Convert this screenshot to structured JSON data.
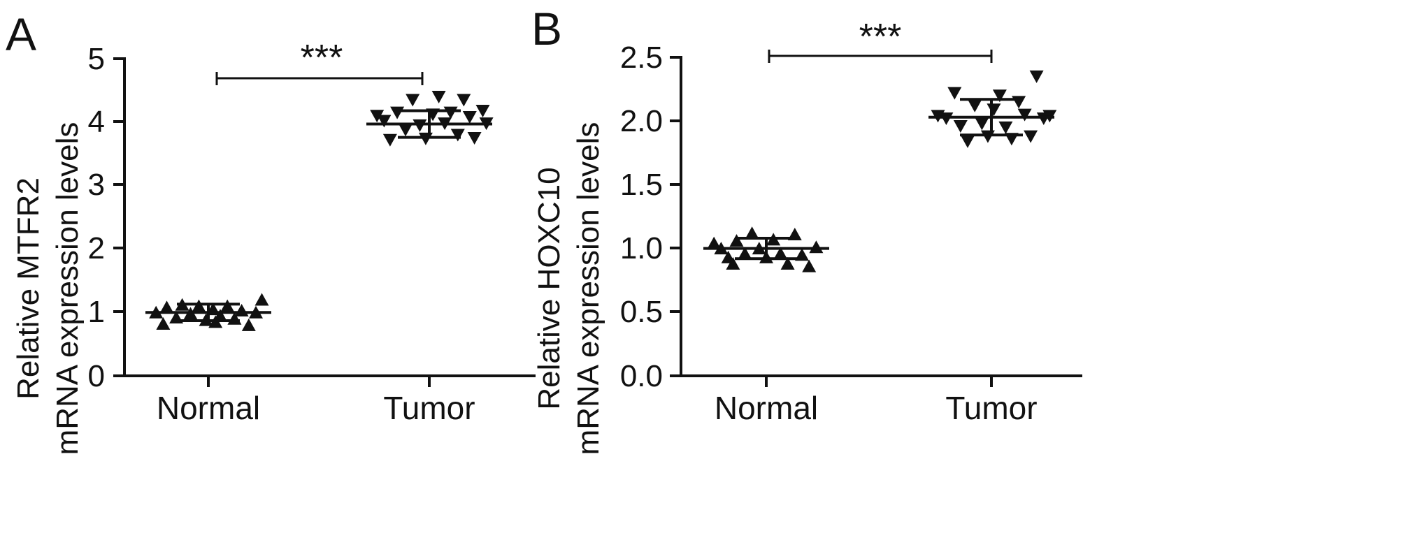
{
  "chart_data": [
    {
      "panel_label": "A",
      "type": "scatter",
      "categories": [
        "Normal",
        "Tumor"
      ],
      "ylabel_line1": "Relative MTFR2",
      "ylabel_line2": "mRNA expression levels",
      "ylim": [
        0,
        5
      ],
      "yticks": [
        0,
        1,
        2,
        3,
        4,
        5
      ],
      "ytick_labels": [
        "0",
        "1",
        "2",
        "3",
        "4",
        "5"
      ],
      "significance": "***",
      "series": [
        {
          "category": "Normal",
          "marker": "triangle-up",
          "points": [
            {
              "x": -0.44,
              "y": 1.0
            },
            {
              "x": -0.35,
              "y": 1.08
            },
            {
              "x": -0.27,
              "y": 0.92
            },
            {
              "x": -0.22,
              "y": 1.12
            },
            {
              "x": -0.15,
              "y": 0.98
            },
            {
              "x": -0.08,
              "y": 1.1
            },
            {
              "x": -0.02,
              "y": 0.88
            },
            {
              "x": 0.04,
              "y": 1.05
            },
            {
              "x": 0.1,
              "y": 0.95
            },
            {
              "x": 0.16,
              "y": 1.1
            },
            {
              "x": 0.22,
              "y": 0.9
            },
            {
              "x": 0.28,
              "y": 1.03
            },
            {
              "x": 0.34,
              "y": 0.8
            },
            {
              "x": 0.4,
              "y": 1.0
            },
            {
              "x": 0.45,
              "y": 1.2
            },
            {
              "x": -0.38,
              "y": 0.82
            },
            {
              "x": 0.06,
              "y": 0.85
            }
          ],
          "mean": 1.0,
          "sd": 0.13
        },
        {
          "category": "Tumor",
          "marker": "triangle-down",
          "points": [
            {
              "x": -0.44,
              "y": 4.1
            },
            {
              "x": -0.38,
              "y": 4.02
            },
            {
              "x": -0.33,
              "y": 3.72
            },
            {
              "x": -0.27,
              "y": 4.15
            },
            {
              "x": -0.2,
              "y": 3.88
            },
            {
              "x": -0.14,
              "y": 4.35
            },
            {
              "x": -0.08,
              "y": 3.95
            },
            {
              "x": -0.03,
              "y": 3.74
            },
            {
              "x": 0.03,
              "y": 4.12
            },
            {
              "x": 0.08,
              "y": 4.4
            },
            {
              "x": 0.13,
              "y": 3.98
            },
            {
              "x": 0.18,
              "y": 4.15
            },
            {
              "x": 0.24,
              "y": 3.8
            },
            {
              "x": 0.29,
              "y": 4.35
            },
            {
              "x": 0.34,
              "y": 4.08
            },
            {
              "x": 0.38,
              "y": 3.75
            },
            {
              "x": 0.45,
              "y": 4.18
            },
            {
              "x": 0.48,
              "y": 3.98
            }
          ],
          "mean": 3.97,
          "sd": 0.21
        }
      ]
    },
    {
      "panel_label": "B",
      "type": "scatter",
      "categories": [
        "Normal",
        "Tumor"
      ],
      "ylabel_line1": "Relative HOXC10",
      "ylabel_line2": "mRNA expression levels",
      "ylim": [
        0,
        2.5
      ],
      "yticks": [
        0,
        0.5,
        1.0,
        1.5,
        2.0,
        2.5
      ],
      "ytick_labels": [
        "0.0",
        "0.5",
        "1.0",
        "1.5",
        "2.0",
        "2.5"
      ],
      "significance": "***",
      "series": [
        {
          "category": "Normal",
          "marker": "triangle-up",
          "points": [
            {
              "x": -0.44,
              "y": 1.04
            },
            {
              "x": -0.38,
              "y": 1.0
            },
            {
              "x": -0.32,
              "y": 0.93
            },
            {
              "x": -0.25,
              "y": 1.06
            },
            {
              "x": -0.18,
              "y": 0.96
            },
            {
              "x": -0.12,
              "y": 1.12
            },
            {
              "x": -0.06,
              "y": 1.0
            },
            {
              "x": 0.0,
              "y": 0.93
            },
            {
              "x": 0.06,
              "y": 1.07
            },
            {
              "x": 0.12,
              "y": 0.96
            },
            {
              "x": 0.18,
              "y": 0.88
            },
            {
              "x": 0.24,
              "y": 1.11
            },
            {
              "x": 0.3,
              "y": 0.95
            },
            {
              "x": 0.36,
              "y": 0.86
            },
            {
              "x": 0.42,
              "y": 1.01
            },
            {
              "x": -0.28,
              "y": 0.88
            }
          ],
          "mean": 1.0,
          "sd": 0.08
        },
        {
          "category": "Tumor",
          "marker": "triangle-down",
          "points": [
            {
              "x": -0.45,
              "y": 2.04
            },
            {
              "x": -0.38,
              "y": 2.02
            },
            {
              "x": -0.31,
              "y": 2.22
            },
            {
              "x": -0.26,
              "y": 1.96
            },
            {
              "x": -0.2,
              "y": 1.84
            },
            {
              "x": -0.14,
              "y": 2.12
            },
            {
              "x": -0.08,
              "y": 1.98
            },
            {
              "x": -0.03,
              "y": 1.88
            },
            {
              "x": 0.02,
              "y": 2.09
            },
            {
              "x": 0.07,
              "y": 2.2
            },
            {
              "x": 0.12,
              "y": 1.95
            },
            {
              "x": 0.17,
              "y": 1.86
            },
            {
              "x": 0.23,
              "y": 2.15
            },
            {
              "x": 0.28,
              "y": 2.05
            },
            {
              "x": 0.33,
              "y": 1.88
            },
            {
              "x": 0.38,
              "y": 2.35
            },
            {
              "x": 0.44,
              "y": 2.02
            },
            {
              "x": 0.49,
              "y": 2.04
            }
          ],
          "mean": 2.03,
          "sd": 0.14
        }
      ]
    }
  ]
}
